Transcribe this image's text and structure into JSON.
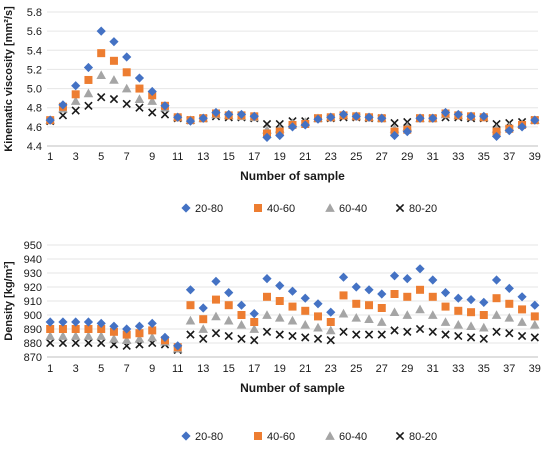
{
  "colors": {
    "20-80": "#4472C4",
    "40-60": "#ED7D31",
    "60-40": "#A5A5A5",
    "80-20": "#1a1a1a",
    "axis": "#bfbfbf",
    "grid": "#e6e6e6"
  },
  "chart_data": [
    {
      "type": "scatter",
      "title": "",
      "xlabel": "Number of sample",
      "ylabel": "Kinematic viscosity [mm²/s]",
      "xlim": [
        1,
        39
      ],
      "ylim": [
        4.4,
        5.8
      ],
      "x_ticks": [
        1,
        3,
        5,
        7,
        9,
        11,
        13,
        15,
        17,
        19,
        21,
        23,
        25,
        27,
        29,
        31,
        33,
        35,
        37,
        39
      ],
      "y_ticks": [
        4.4,
        4.6,
        4.8,
        5.0,
        5.2,
        5.4,
        5.6,
        5.8
      ],
      "y_tick_labels": [
        "4.4",
        "4.6",
        "4.8",
        "5.0",
        "5.2",
        "5.4",
        "5.6",
        "5.8"
      ],
      "grid": "horizontal",
      "legend": "bottom",
      "x": [
        1,
        2,
        3,
        4,
        5,
        6,
        7,
        8,
        9,
        10,
        11,
        12,
        13,
        14,
        15,
        16,
        17,
        18,
        19,
        20,
        21,
        22,
        23,
        24,
        25,
        26,
        27,
        28,
        29,
        30,
        31,
        32,
        33,
        34,
        35,
        36,
        37,
        38,
        39
      ],
      "series": [
        {
          "name": "20-80",
          "marker": "diamond",
          "values": [
            4.67,
            4.83,
            5.03,
            5.22,
            5.6,
            5.49,
            5.33,
            5.11,
            4.97,
            4.82,
            4.7,
            4.66,
            4.69,
            4.75,
            4.73,
            4.73,
            4.71,
            4.49,
            4.51,
            4.6,
            4.62,
            4.68,
            4.7,
            4.73,
            4.71,
            4.7,
            4.69,
            4.51,
            4.55,
            4.69,
            4.69,
            4.75,
            4.73,
            4.71,
            4.71,
            4.5,
            4.56,
            4.6,
            4.67
          ]
        },
        {
          "name": "40-60",
          "marker": "square",
          "values": [
            4.67,
            4.81,
            4.94,
            5.09,
            5.37,
            5.29,
            5.17,
            5.0,
            4.93,
            4.82,
            4.7,
            4.67,
            4.69,
            4.74,
            4.72,
            4.72,
            4.71,
            4.53,
            4.55,
            4.62,
            4.63,
            4.69,
            4.7,
            4.72,
            4.71,
            4.7,
            4.69,
            4.55,
            4.57,
            4.69,
            4.69,
            4.74,
            4.72,
            4.71,
            4.7,
            4.55,
            4.58,
            4.62,
            4.67
          ]
        },
        {
          "name": "60-40",
          "marker": "triangle",
          "values": [
            4.67,
            4.79,
            4.87,
            4.95,
            5.14,
            5.09,
            5.0,
            4.89,
            4.87,
            4.8,
            4.7,
            4.67,
            4.69,
            4.73,
            4.72,
            4.71,
            4.7,
            4.57,
            4.58,
            4.64,
            4.65,
            4.69,
            4.7,
            4.72,
            4.71,
            4.7,
            4.69,
            4.58,
            4.6,
            4.69,
            4.69,
            4.73,
            4.72,
            4.71,
            4.7,
            4.58,
            4.6,
            4.63,
            4.67
          ]
        },
        {
          "name": "80-20",
          "marker": "x",
          "values": [
            4.66,
            4.72,
            4.77,
            4.82,
            4.91,
            4.89,
            4.84,
            4.8,
            4.75,
            4.73,
            4.69,
            4.67,
            4.69,
            4.71,
            4.7,
            4.7,
            4.69,
            4.63,
            4.63,
            4.66,
            4.66,
            4.69,
            4.69,
            4.7,
            4.7,
            4.69,
            4.69,
            4.64,
            4.65,
            4.69,
            4.69,
            4.7,
            4.7,
            4.69,
            4.69,
            4.63,
            4.64,
            4.65,
            4.67
          ]
        }
      ]
    },
    {
      "type": "scatter",
      "title": "",
      "xlabel": "Number of sample",
      "ylabel": "Density [kg/m³]",
      "xlim": [
        1,
        39
      ],
      "ylim": [
        870,
        950
      ],
      "x_ticks": [
        1,
        2,
        3,
        4,
        5,
        6,
        7,
        8,
        9,
        10,
        11,
        12,
        13,
        14,
        15,
        16,
        17,
        18,
        19,
        20,
        21,
        22,
        23,
        24,
        25,
        26,
        27,
        28,
        29,
        30,
        31,
        32,
        33,
        34,
        35,
        36,
        37,
        38,
        39
      ],
      "x_tick_labels": [
        "1",
        "",
        "3",
        "",
        "5",
        "",
        "7",
        "",
        "9",
        "",
        "11",
        "",
        "13",
        "",
        "15",
        "",
        "17",
        "",
        "19",
        "",
        "21",
        "",
        "23",
        "",
        "25",
        "",
        "27",
        "",
        "29",
        "",
        "31",
        "",
        "33",
        "",
        "35",
        "",
        "37",
        "",
        "39"
      ],
      "y_ticks": [
        870,
        880,
        890,
        900,
        910,
        920,
        930,
        940,
        950
      ],
      "grid": "horizontal",
      "legend": "bottom",
      "x": [
        1,
        2,
        3,
        4,
        5,
        6,
        7,
        8,
        9,
        10,
        11,
        12,
        13,
        14,
        15,
        16,
        17,
        18,
        19,
        20,
        21,
        22,
        23,
        24,
        25,
        26,
        27,
        28,
        29,
        30,
        31,
        32,
        33,
        34,
        35,
        36,
        37,
        38,
        39
      ],
      "series": [
        {
          "name": "20-80",
          "marker": "diamond",
          "values": [
            895,
            895,
            895,
            895,
            894,
            892,
            890,
            892,
            894,
            884,
            878,
            918,
            905,
            924,
            916,
            907,
            901,
            926,
            921,
            917,
            912,
            908,
            902,
            927,
            920,
            918,
            915,
            928,
            926,
            933,
            925,
            916,
            912,
            911,
            909,
            925,
            919,
            913,
            907
          ]
        },
        {
          "name": "40-60",
          "marker": "square",
          "values": [
            890,
            890,
            890,
            890,
            890,
            888,
            886,
            887,
            889,
            882,
            877,
            907,
            897,
            911,
            907,
            900,
            895,
            913,
            910,
            906,
            903,
            899,
            895,
            914,
            908,
            907,
            905,
            915,
            913,
            918,
            913,
            906,
            903,
            902,
            900,
            912,
            908,
            904,
            899
          ]
        },
        {
          "name": "60-40",
          "marker": "triangle",
          "values": [
            885,
            885,
            885,
            885,
            885,
            883,
            882,
            883,
            884,
            881,
            876,
            896,
            890,
            899,
            896,
            893,
            890,
            900,
            898,
            896,
            893,
            891,
            889,
            901,
            898,
            897,
            895,
            902,
            900,
            904,
            900,
            895,
            893,
            892,
            891,
            900,
            898,
            895,
            893
          ]
        },
        {
          "name": "80-20",
          "marker": "x",
          "values": [
            880,
            880,
            880,
            880,
            880,
            879,
            878,
            879,
            880,
            879,
            875,
            886,
            883,
            887,
            885,
            883,
            882,
            888,
            886,
            885,
            884,
            883,
            882,
            888,
            886,
            886,
            886,
            889,
            888,
            890,
            888,
            886,
            885,
            884,
            883,
            888,
            887,
            885,
            884
          ]
        }
      ]
    }
  ]
}
